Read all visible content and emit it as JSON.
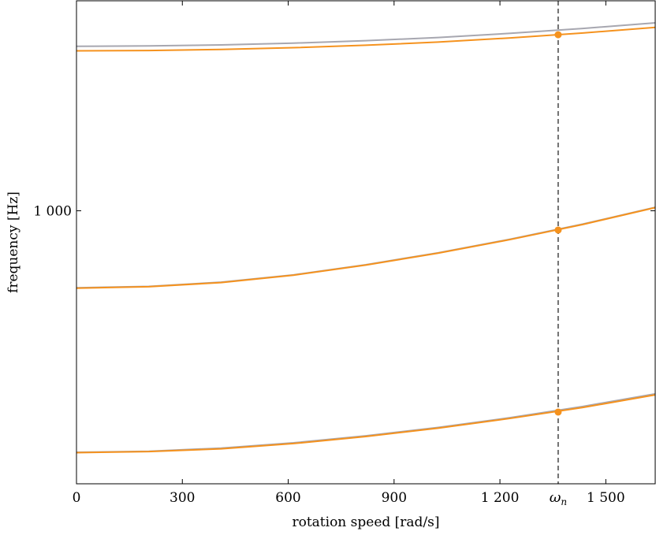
{
  "chart_data": {
    "type": "line",
    "xlabel": "rotation speed [rad/s]",
    "ylabel": "frequency [Hz]",
    "xlim": [
      0,
      1640
    ],
    "ylim": [
      220,
      1600
    ],
    "x_ticks": [
      {
        "value": 0,
        "label": "0"
      },
      {
        "value": 300,
        "label": "300"
      },
      {
        "value": 600,
        "label": "600"
      },
      {
        "value": 900,
        "label": "900"
      },
      {
        "value": 1200,
        "label": "1 200"
      },
      {
        "value": 1500,
        "label": "1 500"
      }
    ],
    "y_ticks": [
      {
        "value": 1000,
        "label": "1 000"
      }
    ],
    "marker_line": {
      "x": 1365,
      "label_main": "ω",
      "label_sub": "n",
      "style": "dashed",
      "color": "#707070"
    },
    "grid": false,
    "colors": {
      "gray": "#a7a7b0",
      "orange": "#f5921e",
      "marker": "#f5921e"
    },
    "x": [
      0,
      205,
      410,
      615,
      820,
      1025,
      1230,
      1435,
      1640
    ],
    "series": [
      {
        "color": "#a7a7b0",
        "values": [
          310,
          313,
          322,
          337,
          357,
          381,
          409,
          441,
          477
        ]
      },
      {
        "color": "#f5921e",
        "values": [
          309,
          312,
          320,
          335,
          355,
          379,
          407,
          438,
          474
        ]
      },
      {
        "color": "#a7a7b0",
        "values": [
          780,
          784,
          796,
          817,
          846,
          880,
          919,
          962,
          1010
        ]
      },
      {
        "color": "#f5921e",
        "values": [
          779,
          783,
          795,
          816,
          845,
          879,
          918,
          961,
          1009
        ]
      },
      {
        "color": "#a7a7b0",
        "values": [
          1470,
          1471,
          1474,
          1479,
          1486,
          1495,
          1507,
          1521,
          1537
        ]
      },
      {
        "color": "#f5921e",
        "values": [
          1457,
          1458,
          1461,
          1466,
          1473,
          1482,
          1494,
          1508,
          1524
        ]
      }
    ],
    "markers": [
      {
        "x": 1365,
        "y": 425
      },
      {
        "x": 1365,
        "y": 945
      },
      {
        "x": 1365,
        "y": 1503
      }
    ]
  }
}
